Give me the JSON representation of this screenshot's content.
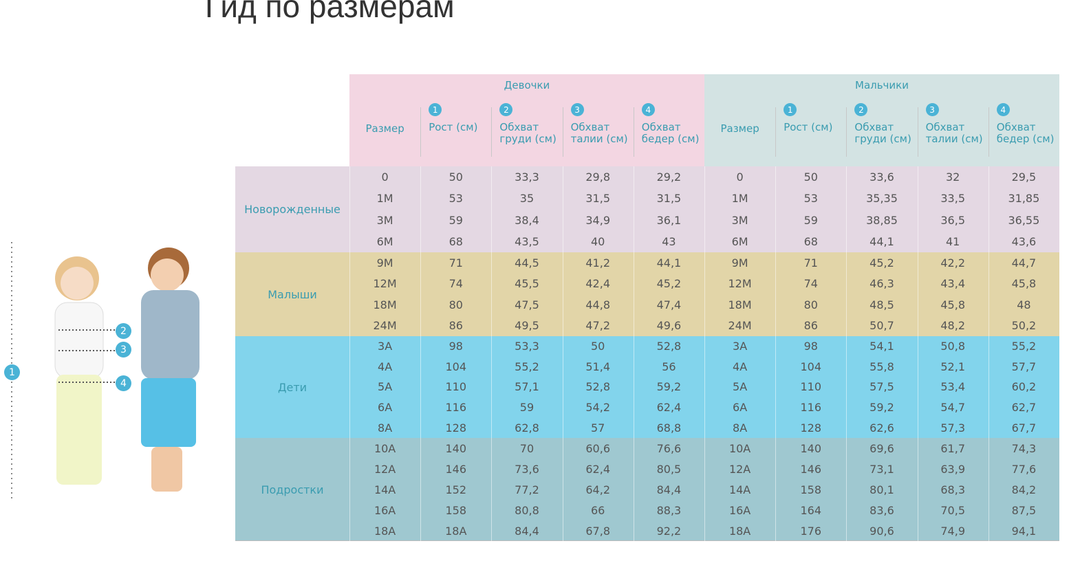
{
  "title": "Гид по размерам",
  "figure_markers": [
    "1",
    "2",
    "3",
    "4"
  ],
  "groups": [
    {
      "name": "Девочки",
      "headers": [
        {
          "label": "Размер"
        },
        {
          "marker": "1",
          "label": "Рост (см)"
        },
        {
          "marker": "2",
          "label": "Обхват груди (см)"
        },
        {
          "marker": "3",
          "label": "Обхват талии (см)"
        },
        {
          "marker": "4",
          "label": "Обхват бедер (см)"
        }
      ]
    },
    {
      "name": "Мальчики",
      "headers": [
        {
          "label": "Размер"
        },
        {
          "marker": "1",
          "label": "Рост (см)"
        },
        {
          "marker": "2",
          "label": "Обхват груди (см)"
        },
        {
          "marker": "3",
          "label": "Обхват талии (см)"
        },
        {
          "marker": "4",
          "label": "Обхват бедер (см)"
        }
      ]
    }
  ],
  "sections": [
    {
      "name": "Новорожденные",
      "rows": [
        [
          "0",
          "50",
          "33,3",
          "29,8",
          "29,2",
          "0",
          "50",
          "33,6",
          "32",
          "29,5"
        ],
        [
          "1M",
          "53",
          "35",
          "31,5",
          "31,5",
          "1M",
          "53",
          "35,35",
          "33,5",
          "31,85"
        ],
        [
          "3M",
          "59",
          "38,4",
          "34,9",
          "36,1",
          "3M",
          "59",
          "38,85",
          "36,5",
          "36,55"
        ],
        [
          "6M",
          "68",
          "43,5",
          "40",
          "43",
          "6M",
          "68",
          "44,1",
          "41",
          "43,6"
        ]
      ]
    },
    {
      "name": "Малыши",
      "rows": [
        [
          "9M",
          "71",
          "44,5",
          "41,2",
          "44,1",
          "9M",
          "71",
          "45,2",
          "42,2",
          "44,7"
        ],
        [
          "12M",
          "74",
          "45,5",
          "42,4",
          "45,2",
          "12M",
          "74",
          "46,3",
          "43,4",
          "45,8"
        ],
        [
          "18M",
          "80",
          "47,5",
          "44,8",
          "47,4",
          "18M",
          "80",
          "48,5",
          "45,8",
          "48"
        ],
        [
          "24M",
          "86",
          "49,5",
          "47,2",
          "49,6",
          "24M",
          "86",
          "50,7",
          "48,2",
          "50,2"
        ]
      ]
    },
    {
      "name": "Дети",
      "rows": [
        [
          "3A",
          "98",
          "53,3",
          "50",
          "52,8",
          "3A",
          "98",
          "54,1",
          "50,8",
          "55,2"
        ],
        [
          "4A",
          "104",
          "55,2",
          "51,4",
          "56",
          "4A",
          "104",
          "55,8",
          "52,1",
          "57,7"
        ],
        [
          "5A",
          "110",
          "57,1",
          "52,8",
          "59,2",
          "5A",
          "110",
          "57,5",
          "53,4",
          "60,2"
        ],
        [
          "6A",
          "116",
          "59",
          "54,2",
          "62,4",
          "6A",
          "116",
          "59,2",
          "54,7",
          "62,7"
        ],
        [
          "8A",
          "128",
          "62,8",
          "57",
          "68,8",
          "8A",
          "128",
          "62,6",
          "57,3",
          "67,7"
        ]
      ]
    },
    {
      "name": "Подростки",
      "rows": [
        [
          "10A",
          "140",
          "70",
          "60,6",
          "76,6",
          "10A",
          "140",
          "69,6",
          "61,7",
          "74,3"
        ],
        [
          "12A",
          "146",
          "73,6",
          "62,4",
          "80,5",
          "12A",
          "146",
          "73,1",
          "63,9",
          "77,6"
        ],
        [
          "14A",
          "152",
          "77,2",
          "64,2",
          "84,4",
          "14A",
          "158",
          "80,1",
          "68,3",
          "84,2"
        ],
        [
          "16A",
          "158",
          "80,8",
          "66",
          "88,3",
          "16A",
          "164",
          "83,6",
          "70,5",
          "87,5"
        ],
        [
          "18A",
          "18A",
          "84,4",
          "67,8",
          "92,2",
          "18A",
          "176",
          "90,6",
          "74,9",
          "94,1"
        ]
      ]
    }
  ]
}
